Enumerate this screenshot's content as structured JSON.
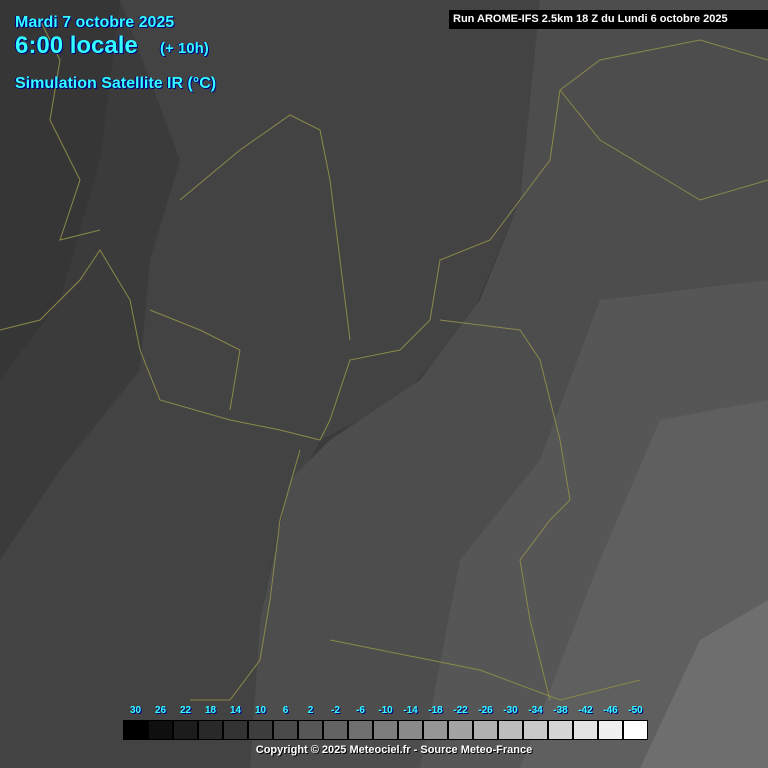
{
  "header": {
    "date": "Mardi 7 octobre 2025",
    "hour": "6:00 locale",
    "lead": "(+ 10h)",
    "product": "Simulation Satellite IR (°C)",
    "run": "Run AROME-IFS 2.5km 18 Z du Lundi 6 octobre 2025"
  },
  "legend": {
    "labels": [
      "30",
      "26",
      "22",
      "18",
      "14",
      "10",
      "6",
      "2",
      "-2",
      "-6",
      "-10",
      "-14",
      "-18",
      "-22",
      "-26",
      "-30",
      "-34",
      "-38",
      "-42",
      "-46",
      "-50"
    ],
    "colors": [
      "#000000",
      "#0f0f0f",
      "#1c1c1c",
      "#292929",
      "#333333",
      "#3d3d3d",
      "#4a4a4a",
      "#575757",
      "#636363",
      "#707070",
      "#7d7d7d",
      "#8a8a8a",
      "#969696",
      "#a3a3a3",
      "#b0b0b0",
      "#bdbdbd",
      "#c9c9c9",
      "#d6d6d6",
      "#e3e3e3",
      "#f0f0f0",
      "#ffffff"
    ]
  },
  "copyright": "Copyright © 2025 Meteociel.fr - Source Meteo-France",
  "colors": {
    "text_accent": "#33ffff",
    "border_lines": "#8a8a4a"
  }
}
